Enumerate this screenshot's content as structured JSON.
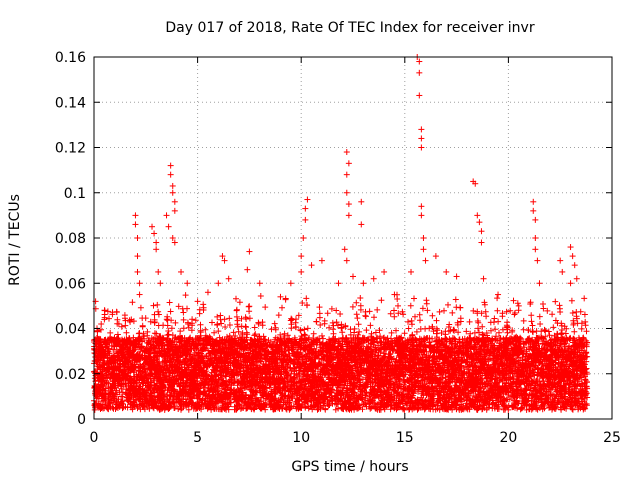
{
  "chart_data": {
    "type": "scatter",
    "title": "Day 017 of 2018, Rate Of TEC Index for receiver invr",
    "xlabel": "GPS time / hours",
    "ylabel": "ROTI / TECUs",
    "xlim": [
      0,
      25
    ],
    "ylim": [
      0,
      0.16
    ],
    "x_ticks": [
      0,
      5,
      10,
      15,
      20,
      25
    ],
    "x_tick_labels": [
      "0",
      "5",
      "10",
      "15",
      "20",
      "25"
    ],
    "y_ticks": [
      0,
      0.02,
      0.04,
      0.06,
      0.08,
      0.1,
      0.12,
      0.14,
      0.16
    ],
    "y_tick_labels": [
      "0",
      "0.02",
      "0.04",
      "0.06",
      "0.08",
      "0.1",
      "0.12",
      "0.14",
      "0.16"
    ],
    "grid": true,
    "marker": "+",
    "color": "#ff0000",
    "series": [
      {
        "name": "ROTI",
        "points": [
          [
            0.2,
            0.031
          ],
          [
            0.5,
            0.044
          ],
          [
            1.2,
            0.042
          ],
          [
            1.8,
            0.044
          ],
          [
            2.0,
            0.09
          ],
          [
            2.0,
            0.086
          ],
          [
            2.1,
            0.08
          ],
          [
            2.1,
            0.072
          ],
          [
            2.1,
            0.065
          ],
          [
            2.2,
            0.06
          ],
          [
            2.2,
            0.055
          ],
          [
            2.8,
            0.085
          ],
          [
            2.9,
            0.082
          ],
          [
            3.0,
            0.078
          ],
          [
            3.0,
            0.075
          ],
          [
            3.1,
            0.065
          ],
          [
            3.2,
            0.06
          ],
          [
            3.5,
            0.09
          ],
          [
            3.6,
            0.085
          ],
          [
            3.7,
            0.112
          ],
          [
            3.7,
            0.108
          ],
          [
            3.8,
            0.103
          ],
          [
            3.8,
            0.1
          ],
          [
            3.9,
            0.096
          ],
          [
            3.9,
            0.092
          ],
          [
            3.8,
            0.08
          ],
          [
            3.9,
            0.078
          ],
          [
            4.2,
            0.065
          ],
          [
            4.5,
            0.06
          ],
          [
            5.0,
            0.052
          ],
          [
            5.5,
            0.056
          ],
          [
            6.0,
            0.06
          ],
          [
            6.2,
            0.072
          ],
          [
            6.3,
            0.07
          ],
          [
            6.5,
            0.062
          ],
          [
            7.5,
            0.074
          ],
          [
            7.4,
            0.066
          ],
          [
            8.0,
            0.06
          ],
          [
            9.0,
            0.054
          ],
          [
            9.5,
            0.06
          ],
          [
            10.0,
            0.065
          ],
          [
            10.0,
            0.072
          ],
          [
            10.1,
            0.08
          ],
          [
            10.2,
            0.088
          ],
          [
            10.2,
            0.093
          ],
          [
            10.3,
            0.097
          ],
          [
            10.5,
            0.068
          ],
          [
            11.0,
            0.07
          ],
          [
            11.8,
            0.06
          ],
          [
            12.2,
            0.118
          ],
          [
            12.3,
            0.113
          ],
          [
            12.2,
            0.108
          ],
          [
            12.2,
            0.1
          ],
          [
            12.3,
            0.095
          ],
          [
            12.3,
            0.09
          ],
          [
            12.1,
            0.075
          ],
          [
            12.2,
            0.07
          ],
          [
            12.5,
            0.063
          ],
          [
            12.9,
            0.096
          ],
          [
            12.9,
            0.086
          ],
          [
            13.0,
            0.06
          ],
          [
            13.5,
            0.062
          ],
          [
            14.0,
            0.065
          ],
          [
            14.5,
            0.055
          ],
          [
            15.3,
            0.065
          ],
          [
            15.6,
            0.16
          ],
          [
            15.7,
            0.158
          ],
          [
            15.7,
            0.153
          ],
          [
            15.7,
            0.143
          ],
          [
            15.8,
            0.128
          ],
          [
            15.8,
            0.124
          ],
          [
            15.8,
            0.12
          ],
          [
            15.8,
            0.094
          ],
          [
            15.8,
            0.09
          ],
          [
            15.9,
            0.08
          ],
          [
            15.9,
            0.075
          ],
          [
            16.0,
            0.07
          ],
          [
            16.5,
            0.072
          ],
          [
            17.0,
            0.065
          ],
          [
            17.5,
            0.063
          ],
          [
            18.3,
            0.105
          ],
          [
            18.4,
            0.104
          ],
          [
            18.5,
            0.09
          ],
          [
            18.6,
            0.087
          ],
          [
            18.7,
            0.083
          ],
          [
            18.7,
            0.078
          ],
          [
            18.8,
            0.062
          ],
          [
            19.5,
            0.055
          ],
          [
            20.5,
            0.05
          ],
          [
            21.2,
            0.096
          ],
          [
            21.2,
            0.092
          ],
          [
            21.3,
            0.088
          ],
          [
            21.3,
            0.08
          ],
          [
            21.3,
            0.075
          ],
          [
            21.4,
            0.07
          ],
          [
            21.5,
            0.06
          ],
          [
            22.5,
            0.07
          ],
          [
            22.6,
            0.065
          ],
          [
            23.0,
            0.076
          ],
          [
            23.1,
            0.072
          ],
          [
            23.2,
            0.068
          ],
          [
            23.3,
            0.062
          ],
          [
            23.0,
            0.06
          ]
        ]
      }
    ]
  }
}
